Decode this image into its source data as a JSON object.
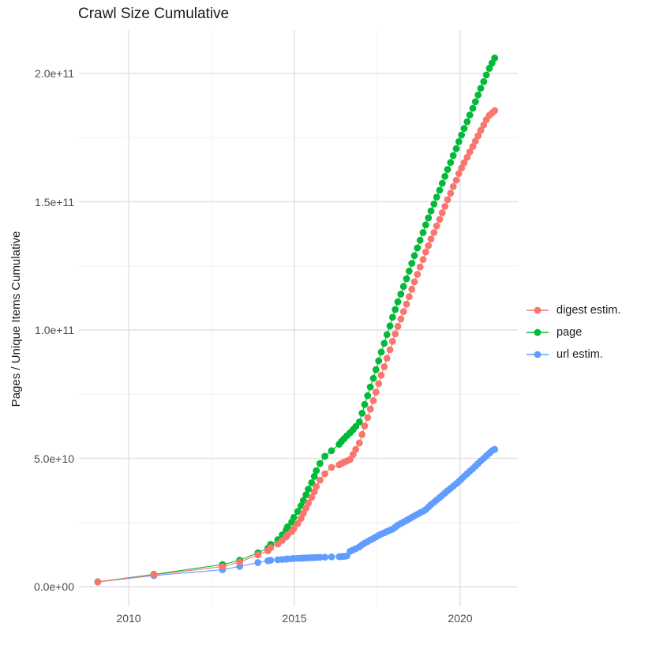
{
  "chart_data": {
    "type": "line",
    "title": "Crawl Size Cumulative",
    "xlabel": "",
    "ylabel": "Pages / Unique Items Cumulative",
    "value_unit": "1e9",
    "grid": true,
    "legend_position": "right",
    "xlim": [
      2008.5,
      2021.7
    ],
    "ylim": [
      0,
      217000000000.0
    ],
    "x_ticks": [
      {
        "value": 2010,
        "label": "2010"
      },
      {
        "value": 2015,
        "label": "2015"
      },
      {
        "value": 2020,
        "label": "2020"
      }
    ],
    "x_minor_ticks": [
      2012.5,
      2017.5
    ],
    "y_ticks": [
      {
        "value": 0,
        "label": "0.0e+00"
      },
      {
        "value": 50,
        "label": "5.0e+10"
      },
      {
        "value": 100,
        "label": "1.0e+11"
      },
      {
        "value": 150,
        "label": "1.5e+11"
      },
      {
        "value": 200,
        "label": "2.0e+11"
      }
    ],
    "y_minor_ticks": [
      25,
      75,
      125,
      175
    ],
    "colors": {
      "digest": "#F8766D",
      "page": "#00BA38",
      "url": "#619CFF"
    },
    "series": [
      {
        "name": "digest estim.",
        "color": "#F8766D",
        "points": [
          [
            2009.07,
            1.85
          ],
          [
            2010.76,
            4.6
          ],
          [
            2012.83,
            7.8
          ],
          [
            2013.35,
            9.6
          ],
          [
            2013.9,
            12.4
          ],
          [
            2014.2,
            14.0
          ],
          [
            2014.28,
            15.2
          ],
          [
            2014.5,
            16.6
          ],
          [
            2014.63,
            18.0
          ],
          [
            2014.75,
            19.4
          ],
          [
            2014.79,
            20.2
          ],
          [
            2014.92,
            21.5
          ],
          [
            2014.98,
            22.6
          ],
          [
            2015.1,
            24.6
          ],
          [
            2015.2,
            26.6
          ],
          [
            2015.27,
            28.6
          ],
          [
            2015.35,
            30.6
          ],
          [
            2015.42,
            32.6
          ],
          [
            2015.52,
            34.8
          ],
          [
            2015.6,
            37.0
          ],
          [
            2015.66,
            39.0
          ],
          [
            2015.77,
            41.5
          ],
          [
            2015.92,
            44.0
          ],
          [
            2016.12,
            46.5
          ],
          [
            2016.35,
            47.5
          ],
          [
            2016.42,
            48.0
          ],
          [
            2016.5,
            48.5
          ],
          [
            2016.58,
            49.0
          ],
          [
            2016.68,
            49.6
          ],
          [
            2016.77,
            51.5
          ],
          [
            2016.85,
            53.5
          ],
          [
            2016.96,
            56.0
          ],
          [
            2017.04,
            59.3
          ],
          [
            2017.12,
            62.6
          ],
          [
            2017.21,
            65.9
          ],
          [
            2017.29,
            69.2
          ],
          [
            2017.38,
            72.5
          ],
          [
            2017.46,
            75.8
          ],
          [
            2017.54,
            79.1
          ],
          [
            2017.62,
            82.4
          ],
          [
            2017.71,
            85.7
          ],
          [
            2017.79,
            89.0
          ],
          [
            2017.88,
            92.3
          ],
          [
            2017.96,
            95.6
          ],
          [
            2018.04,
            98.5
          ],
          [
            2018.12,
            101.4
          ],
          [
            2018.21,
            104.3
          ],
          [
            2018.29,
            107.2
          ],
          [
            2018.38,
            110.1
          ],
          [
            2018.46,
            113.0
          ],
          [
            2018.54,
            115.9
          ],
          [
            2018.62,
            118.8
          ],
          [
            2018.71,
            121.7
          ],
          [
            2018.79,
            124.6
          ],
          [
            2018.88,
            127.5
          ],
          [
            2018.96,
            130.4
          ],
          [
            2019.04,
            132.9
          ],
          [
            2019.12,
            135.5
          ],
          [
            2019.21,
            138.0
          ],
          [
            2019.29,
            140.6
          ],
          [
            2019.38,
            143.1
          ],
          [
            2019.46,
            145.7
          ],
          [
            2019.54,
            148.2
          ],
          [
            2019.62,
            150.8
          ],
          [
            2019.71,
            153.3
          ],
          [
            2019.79,
            155.9
          ],
          [
            2019.88,
            158.4
          ],
          [
            2019.96,
            161.0
          ],
          [
            2020.04,
            163.1
          ],
          [
            2020.12,
            165.2
          ],
          [
            2020.21,
            167.3
          ],
          [
            2020.29,
            169.4
          ],
          [
            2020.38,
            171.5
          ],
          [
            2020.46,
            173.6
          ],
          [
            2020.54,
            175.7
          ],
          [
            2020.62,
            177.8
          ],
          [
            2020.71,
            179.9
          ],
          [
            2020.79,
            182.0
          ],
          [
            2020.88,
            183.7
          ],
          [
            2020.96,
            184.6
          ],
          [
            2021.04,
            185.5
          ]
        ]
      },
      {
        "name": "page",
        "color": "#00BA38",
        "points": [
          [
            2009.07,
            1.9
          ],
          [
            2010.76,
            4.8
          ],
          [
            2012.83,
            8.6
          ],
          [
            2013.35,
            10.3
          ],
          [
            2013.9,
            13.2
          ],
          [
            2014.2,
            15.0
          ],
          [
            2014.28,
            16.5
          ],
          [
            2014.5,
            18.3
          ],
          [
            2014.63,
            20.2
          ],
          [
            2014.75,
            22.1
          ],
          [
            2014.79,
            23.3
          ],
          [
            2014.92,
            25.2
          ],
          [
            2014.98,
            27.0
          ],
          [
            2015.1,
            29.3
          ],
          [
            2015.2,
            31.5
          ],
          [
            2015.27,
            33.6
          ],
          [
            2015.35,
            35.8
          ],
          [
            2015.42,
            38.0
          ],
          [
            2015.52,
            40.5
          ],
          [
            2015.6,
            43.0
          ],
          [
            2015.66,
            45.2
          ],
          [
            2015.77,
            48.0
          ],
          [
            2015.92,
            50.8
          ],
          [
            2016.12,
            53.0
          ],
          [
            2016.35,
            55.5
          ],
          [
            2016.42,
            56.6
          ],
          [
            2016.5,
            57.7
          ],
          [
            2016.58,
            58.8
          ],
          [
            2016.68,
            60.0
          ],
          [
            2016.77,
            61.2
          ],
          [
            2016.85,
            62.4
          ],
          [
            2016.96,
            64.2
          ],
          [
            2017.04,
            67.6
          ],
          [
            2017.12,
            71.0
          ],
          [
            2017.21,
            74.4
          ],
          [
            2017.29,
            77.8
          ],
          [
            2017.38,
            81.2
          ],
          [
            2017.46,
            84.6
          ],
          [
            2017.54,
            88.0
          ],
          [
            2017.62,
            91.4
          ],
          [
            2017.71,
            94.8
          ],
          [
            2017.79,
            98.2
          ],
          [
            2017.88,
            101.6
          ],
          [
            2017.96,
            105.0
          ],
          [
            2018.04,
            108.0
          ],
          [
            2018.12,
            111.0
          ],
          [
            2018.21,
            114.0
          ],
          [
            2018.29,
            117.0
          ],
          [
            2018.38,
            120.0
          ],
          [
            2018.46,
            123.0
          ],
          [
            2018.54,
            126.0
          ],
          [
            2018.62,
            129.0
          ],
          [
            2018.71,
            132.0
          ],
          [
            2018.79,
            135.0
          ],
          [
            2018.88,
            138.0
          ],
          [
            2018.96,
            141.0
          ],
          [
            2019.04,
            143.7
          ],
          [
            2019.12,
            146.4
          ],
          [
            2019.21,
            149.1
          ],
          [
            2019.29,
            151.8
          ],
          [
            2019.38,
            154.5
          ],
          [
            2019.46,
            157.2
          ],
          [
            2019.54,
            159.9
          ],
          [
            2019.62,
            162.6
          ],
          [
            2019.71,
            165.3
          ],
          [
            2019.79,
            168.0
          ],
          [
            2019.88,
            170.7
          ],
          [
            2019.96,
            173.4
          ],
          [
            2020.04,
            176.0
          ],
          [
            2020.12,
            178.6
          ],
          [
            2020.21,
            181.2
          ],
          [
            2020.29,
            183.8
          ],
          [
            2020.38,
            186.4
          ],
          [
            2020.46,
            189.0
          ],
          [
            2020.54,
            191.6
          ],
          [
            2020.62,
            194.2
          ],
          [
            2020.71,
            196.8
          ],
          [
            2020.79,
            199.4
          ],
          [
            2020.88,
            202.0
          ],
          [
            2020.96,
            204.0
          ],
          [
            2021.04,
            206.0
          ]
        ]
      },
      {
        "name": "url estim.",
        "color": "#619CFF",
        "points": [
          [
            2009.07,
            1.8
          ],
          [
            2010.76,
            4.3
          ],
          [
            2012.83,
            6.6
          ],
          [
            2013.35,
            7.9
          ],
          [
            2013.9,
            9.4
          ],
          [
            2014.2,
            10.1
          ],
          [
            2014.28,
            10.3
          ],
          [
            2014.5,
            10.5
          ],
          [
            2014.63,
            10.6
          ],
          [
            2014.75,
            10.7
          ],
          [
            2014.79,
            10.8
          ],
          [
            2014.92,
            10.9
          ],
          [
            2014.98,
            11.0
          ],
          [
            2015.1,
            11.05
          ],
          [
            2015.2,
            11.1
          ],
          [
            2015.27,
            11.15
          ],
          [
            2015.35,
            11.2
          ],
          [
            2015.42,
            11.25
          ],
          [
            2015.52,
            11.3
          ],
          [
            2015.6,
            11.35
          ],
          [
            2015.66,
            11.4
          ],
          [
            2015.77,
            11.45
          ],
          [
            2015.92,
            11.5
          ],
          [
            2016.12,
            11.6
          ],
          [
            2016.35,
            11.7
          ],
          [
            2016.42,
            11.75
          ],
          [
            2016.5,
            11.8
          ],
          [
            2016.58,
            12.0
          ],
          [
            2016.68,
            13.8
          ],
          [
            2016.77,
            14.3
          ],
          [
            2016.85,
            14.8
          ],
          [
            2016.96,
            15.5
          ],
          [
            2017.04,
            16.3
          ],
          [
            2017.12,
            17.0
          ],
          [
            2017.21,
            17.6
          ],
          [
            2017.29,
            18.2
          ],
          [
            2017.38,
            18.8
          ],
          [
            2017.46,
            19.4
          ],
          [
            2017.54,
            20.0
          ],
          [
            2017.62,
            20.5
          ],
          [
            2017.71,
            21.0
          ],
          [
            2017.79,
            21.5
          ],
          [
            2017.88,
            22.0
          ],
          [
            2017.96,
            22.4
          ],
          [
            2018.04,
            23.2
          ],
          [
            2018.12,
            24.0
          ],
          [
            2018.21,
            24.6
          ],
          [
            2018.29,
            25.2
          ],
          [
            2018.38,
            25.8
          ],
          [
            2018.46,
            26.4
          ],
          [
            2018.54,
            27.0
          ],
          [
            2018.62,
            27.6
          ],
          [
            2018.71,
            28.2
          ],
          [
            2018.79,
            28.8
          ],
          [
            2018.88,
            29.4
          ],
          [
            2018.96,
            30.0
          ],
          [
            2019.04,
            31.0
          ],
          [
            2019.12,
            32.0
          ],
          [
            2019.21,
            32.9
          ],
          [
            2019.29,
            33.8
          ],
          [
            2019.38,
            34.7
          ],
          [
            2019.46,
            35.6
          ],
          [
            2019.54,
            36.5
          ],
          [
            2019.62,
            37.4
          ],
          [
            2019.71,
            38.3
          ],
          [
            2019.79,
            39.2
          ],
          [
            2019.88,
            40.1
          ],
          [
            2019.96,
            41.0
          ],
          [
            2020.04,
            42.0
          ],
          [
            2020.12,
            43.0
          ],
          [
            2020.21,
            44.0
          ],
          [
            2020.29,
            45.0
          ],
          [
            2020.38,
            46.0
          ],
          [
            2020.46,
            47.0
          ],
          [
            2020.54,
            48.0
          ],
          [
            2020.62,
            49.0
          ],
          [
            2020.71,
            50.0
          ],
          [
            2020.79,
            51.0
          ],
          [
            2020.88,
            52.0
          ],
          [
            2020.96,
            53.0
          ],
          [
            2021.04,
            53.5
          ]
        ]
      }
    ]
  }
}
